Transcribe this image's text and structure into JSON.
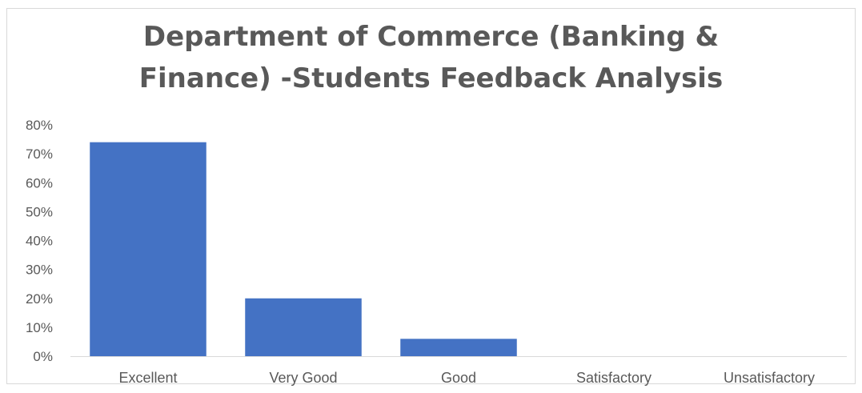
{
  "chart_data": {
    "type": "bar",
    "title_lines": [
      "Department of Commerce (Banking &",
      "Finance) -Students Feedback Analysis"
    ],
    "categories": [
      "Excellent",
      "Very Good",
      "Good",
      "Satisfactory",
      "Unsatisfactory"
    ],
    "values": [
      74,
      20,
      6,
      0,
      0
    ],
    "value_unit": "%",
    "ylim": [
      0,
      80
    ],
    "yticks": [
      "0%",
      "10%",
      "20%",
      "30%",
      "40%",
      "50%",
      "60%",
      "70%",
      "80%"
    ],
    "xlabel": "",
    "ylabel": "",
    "grid": false,
    "legend": "none",
    "bar_color": "#4472C4",
    "axis_color": "#d9d9d9",
    "text_color": "#595959"
  }
}
